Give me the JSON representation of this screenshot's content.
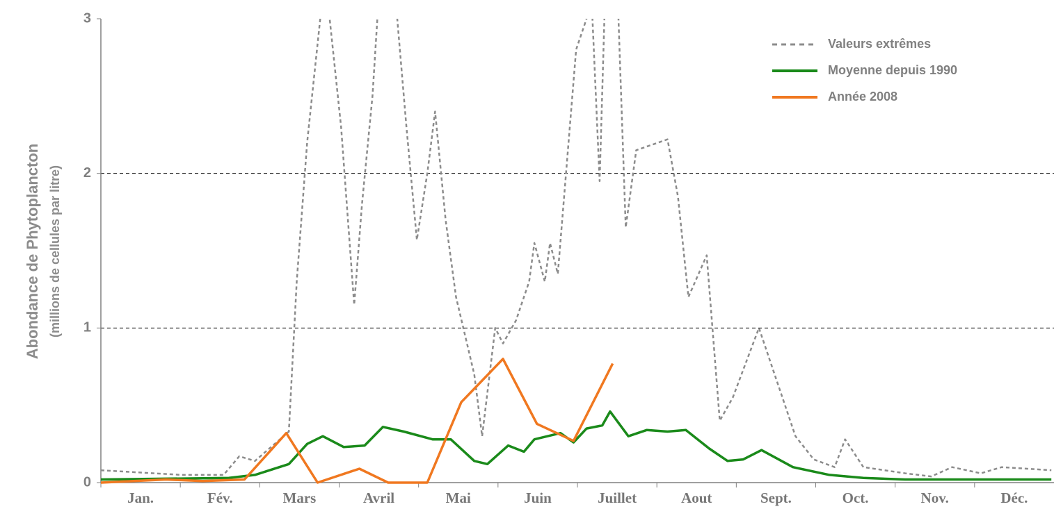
{
  "chart_data": {
    "type": "line",
    "ylabel": "Abondance de Phytoplancton",
    "ylabel_sub": "(millions de cellules par litre)",
    "categories": [
      "Jan.",
      "Fév.",
      "Mars",
      "Avril",
      "Mai",
      "Juin",
      "Juillet",
      "Aout",
      "Sept.",
      "Oct.",
      "Nov.",
      "Déc."
    ],
    "xlim": [
      0,
      365
    ],
    "ylim": [
      0,
      3
    ],
    "yticks": [
      0,
      1,
      2,
      3
    ],
    "grid": true,
    "legend": "upper right",
    "series": [
      {
        "name": "Valeurs extrêmes",
        "color": "#8c8c8c",
        "style": "dashed",
        "x": [
          0,
          31,
          47,
          53,
          59,
          72,
          75,
          79,
          84,
          87,
          92,
          97,
          100,
          104,
          107,
          113,
          117,
          121,
          125,
          128,
          132,
          136,
          143,
          146,
          151,
          154,
          159,
          164,
          166,
          170,
          172,
          175,
          182,
          188,
          191,
          193,
          198,
          201,
          205,
          217,
          221,
          225,
          232,
          237,
          242,
          252,
          260,
          266,
          273,
          281,
          285,
          292,
          308,
          318,
          326,
          337,
          345,
          364
        ],
        "values": [
          0.08,
          0.05,
          0.05,
          0.17,
          0.14,
          0.33,
          1.3,
          2.2,
          3.0,
          3.1,
          2.3,
          1.15,
          1.8,
          2.5,
          3.3,
          3.1,
          2.3,
          1.57,
          2.0,
          2.4,
          1.7,
          1.2,
          0.7,
          0.3,
          1.0,
          0.9,
          1.05,
          1.3,
          1.55,
          1.3,
          1.55,
          1.35,
          2.8,
          3.1,
          1.95,
          3.1,
          3.1,
          1.65,
          2.15,
          2.22,
          1.85,
          1.2,
          1.47,
          0.4,
          0.55,
          1.0,
          0.6,
          0.3,
          0.15,
          0.1,
          0.28,
          0.1,
          0.06,
          0.04,
          0.1,
          0.06,
          0.1,
          0.08
        ]
      },
      {
        "name": "Moyenne depuis 1990",
        "color": "#1a8a1a",
        "style": "solid",
        "x": [
          0,
          49,
          59,
          72,
          79,
          85,
          93,
          101,
          108,
          116,
          127,
          134,
          143,
          148,
          156,
          162,
          166,
          176,
          181,
          186,
          192,
          195,
          202,
          209,
          217,
          224,
          233,
          240,
          246,
          253,
          265,
          279,
          292,
          308,
          364
        ],
        "values": [
          0.02,
          0.03,
          0.05,
          0.12,
          0.25,
          0.3,
          0.23,
          0.24,
          0.36,
          0.33,
          0.28,
          0.28,
          0.14,
          0.12,
          0.24,
          0.2,
          0.28,
          0.32,
          0.26,
          0.35,
          0.37,
          0.46,
          0.3,
          0.34,
          0.33,
          0.34,
          0.22,
          0.14,
          0.15,
          0.21,
          0.1,
          0.05,
          0.03,
          0.02,
          0.02
        ]
      },
      {
        "name": "Année 2008",
        "color": "#f07820",
        "style": "solid",
        "x": [
          0,
          25,
          39,
          55,
          71,
          83,
          99,
          110,
          125,
          138,
          154,
          167,
          181,
          196
        ],
        "values": [
          0,
          0.02,
          0.01,
          0.02,
          0.32,
          0,
          0.09,
          0,
          0,
          0.52,
          0.8,
          0.38,
          0.27,
          0.77
        ]
      }
    ]
  }
}
